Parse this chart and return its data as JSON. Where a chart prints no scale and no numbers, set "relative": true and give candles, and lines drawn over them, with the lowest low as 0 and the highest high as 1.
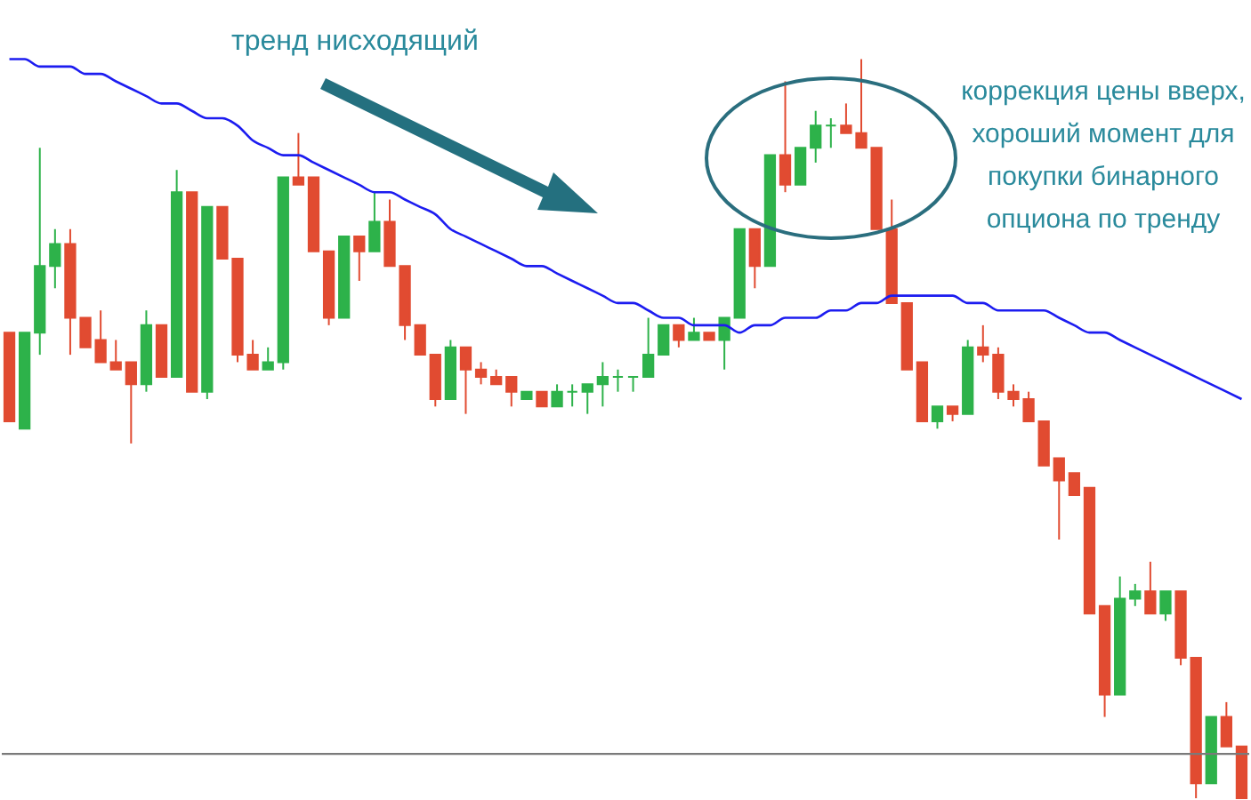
{
  "chart_data": {
    "type": "candlestick",
    "relative": true,
    "categories": [
      null,
      null,
      null,
      null,
      null,
      null,
      null,
      null,
      null,
      null,
      null,
      null,
      null,
      null,
      null,
      null,
      null,
      null,
      null,
      null,
      null,
      null,
      null,
      null,
      null,
      null,
      null,
      null,
      null,
      null,
      null,
      null,
      null,
      null,
      null,
      null,
      null,
      null,
      null,
      null,
      null,
      null,
      null,
      null,
      null,
      null,
      null,
      null,
      null,
      null,
      null,
      null,
      null,
      null,
      null,
      null,
      null,
      null,
      null,
      null,
      null,
      null,
      null,
      null,
      null,
      null,
      null,
      null,
      null,
      null,
      null,
      null,
      null,
      null,
      null,
      null,
      null,
      null,
      null,
      null,
      null,
      null
    ],
    "ohlc": [
      [
        0.63,
        0.63,
        0.51,
        0.51
      ],
      [
        0.5,
        0.63,
        0.5,
        0.63
      ],
      [
        0.63,
        0.88,
        0.6,
        0.72
      ],
      [
        0.72,
        0.77,
        0.69,
        0.75
      ],
      [
        0.75,
        0.77,
        0.6,
        0.65
      ],
      [
        0.65,
        0.65,
        0.61,
        0.61
      ],
      [
        0.62,
        0.66,
        0.59,
        0.59
      ],
      [
        0.59,
        0.62,
        0.58,
        0.58
      ],
      [
        0.59,
        0.59,
        0.48,
        0.56
      ],
      [
        0.56,
        0.66,
        0.55,
        0.64
      ],
      [
        0.64,
        0.64,
        0.57,
        0.57
      ],
      [
        0.57,
        0.85,
        0.57,
        0.82
      ],
      [
        0.82,
        0.82,
        0.55,
        0.55
      ],
      [
        0.55,
        0.8,
        0.54,
        0.8
      ],
      [
        0.8,
        0.8,
        0.73,
        0.73
      ],
      [
        0.73,
        0.73,
        0.59,
        0.6
      ],
      [
        0.6,
        0.62,
        0.58,
        0.58
      ],
      [
        0.58,
        0.61,
        0.58,
        0.59
      ],
      [
        0.59,
        0.84,
        0.58,
        0.84
      ],
      [
        0.84,
        0.9,
        0.83,
        0.83
      ],
      [
        0.84,
        0.84,
        0.74,
        0.74
      ],
      [
        0.74,
        0.74,
        0.64,
        0.65
      ],
      [
        0.65,
        0.76,
        0.65,
        0.76
      ],
      [
        0.76,
        0.76,
        0.7,
        0.74
      ],
      [
        0.74,
        0.82,
        0.74,
        0.78
      ],
      [
        0.78,
        0.81,
        0.72,
        0.72
      ],
      [
        0.72,
        0.72,
        0.62,
        0.64
      ],
      [
        0.64,
        0.64,
        0.6,
        0.6
      ],
      [
        0.6,
        0.6,
        0.53,
        0.54
      ],
      [
        0.54,
        0.62,
        0.54,
        0.61
      ],
      [
        0.61,
        0.61,
        0.52,
        0.58
      ],
      [
        0.58,
        0.59,
        0.56,
        0.57
      ],
      [
        0.57,
        0.58,
        0.56,
        0.56
      ],
      [
        0.57,
        0.57,
        0.53,
        0.55
      ],
      [
        0.54,
        0.55,
        0.54,
        0.55
      ],
      [
        0.55,
        0.55,
        0.53,
        0.53
      ],
      [
        0.53,
        0.56,
        0.53,
        0.55
      ],
      [
        0.55,
        0.56,
        0.53,
        0.55
      ],
      [
        0.55,
        0.56,
        0.52,
        0.56
      ],
      [
        0.56,
        0.59,
        0.53,
        0.57
      ],
      [
        0.57,
        0.58,
        0.55,
        0.57
      ],
      [
        0.57,
        0.57,
        0.55,
        0.57
      ],
      [
        0.57,
        0.65,
        0.57,
        0.6
      ],
      [
        0.6,
        0.64,
        0.6,
        0.64
      ],
      [
        0.64,
        0.64,
        0.61,
        0.62
      ],
      [
        0.62,
        0.65,
        0.62,
        0.63
      ],
      [
        0.63,
        0.63,
        0.62,
        0.62
      ],
      [
        0.62,
        0.65,
        0.58,
        0.65
      ],
      [
        0.65,
        0.77,
        0.65,
        0.77
      ],
      [
        0.77,
        0.77,
        0.69,
        0.72
      ],
      [
        0.72,
        0.87,
        0.72,
        0.87
      ],
      [
        0.87,
        0.97,
        0.82,
        0.83
      ],
      [
        0.83,
        0.88,
        0.83,
        0.88
      ],
      [
        0.88,
        0.93,
        0.86,
        0.91
      ],
      [
        0.91,
        0.92,
        0.88,
        0.91
      ],
      [
        0.91,
        0.94,
        0.9,
        0.9
      ],
      [
        0.9,
        1,
        0.88,
        0.88
      ],
      [
        0.88,
        0.88,
        0.77,
        0.77
      ],
      [
        0.77,
        0.81,
        0.67,
        0.67
      ],
      [
        0.67,
        0.67,
        0.58,
        0.58
      ],
      [
        0.59,
        0.59,
        0.51,
        0.51
      ],
      [
        0.51,
        0.53,
        0.5,
        0.53
      ],
      [
        0.53,
        0.53,
        0.51,
        0.52
      ],
      [
        0.52,
        0.62,
        0.52,
        0.61
      ],
      [
        0.61,
        0.64,
        0.59,
        0.6
      ],
      [
        0.6,
        0.61,
        0.54,
        0.55
      ],
      [
        0.55,
        0.56,
        0.53,
        0.54
      ],
      [
        0.54,
        0.55,
        0.51,
        0.51
      ],
      [
        0.51,
        0.51,
        0.45,
        0.45
      ],
      [
        0.46,
        0.46,
        0.35,
        0.43
      ],
      [
        0.44,
        0.44,
        0.41,
        0.41
      ],
      [
        0.42,
        0.42,
        0.25,
        0.25
      ],
      [
        0.26,
        0.26,
        0.11,
        0.14
      ],
      [
        0.14,
        0.3,
        0.14,
        0.27
      ],
      [
        0.27,
        0.29,
        0.26,
        0.28
      ],
      [
        0.28,
        0.32,
        0.25,
        0.25
      ],
      [
        0.25,
        0.28,
        0.24,
        0.28
      ],
      [
        0.28,
        0.28,
        0.18,
        0.19
      ],
      [
        0.19,
        0.19,
        0,
        0.02
      ],
      [
        0.02,
        0.11,
        0.02,
        0.11
      ],
      [
        0.11,
        0.13,
        0.07,
        0.07
      ],
      [
        0.07,
        0.07,
        0,
        0
      ]
    ],
    "series": [
      {
        "type": "line",
        "color": "#1c1cf0",
        "values": [
          1.0,
          1.0,
          0.99,
          0.99,
          0.99,
          0.98,
          0.98,
          0.97,
          0.96,
          0.95,
          0.94,
          0.94,
          0.93,
          0.92,
          0.92,
          0.91,
          0.89,
          0.88,
          0.87,
          0.87,
          0.86,
          0.85,
          0.84,
          0.83,
          0.82,
          0.82,
          0.81,
          0.8,
          0.79,
          0.77,
          0.76,
          0.75,
          0.74,
          0.73,
          0.72,
          0.72,
          0.71,
          0.7,
          0.69,
          0.68,
          0.67,
          0.67,
          0.66,
          0.65,
          0.65,
          0.64,
          0.64,
          0.64,
          0.63,
          0.64,
          0.64,
          0.65,
          0.65,
          0.65,
          0.66,
          0.66,
          0.67,
          0.67,
          0.68,
          0.68,
          0.68,
          0.68,
          0.68,
          0.67,
          0.67,
          0.66,
          0.66,
          0.66,
          0.66,
          0.65,
          0.64,
          0.63,
          0.63,
          0.62,
          0.61,
          0.6,
          0.59,
          0.58,
          0.57,
          0.56,
          0.55,
          0.54
        ]
      }
    ],
    "ref_lines": [
      {
        "axis": "y",
        "value": 0.06,
        "color": "#7a7a7a"
      }
    ],
    "annotations": [
      "тренд нисходящий",
      "коррекция цены вверх,\nхороший момент для\nпокупки бинарного\nопциона по тренду"
    ]
  }
}
